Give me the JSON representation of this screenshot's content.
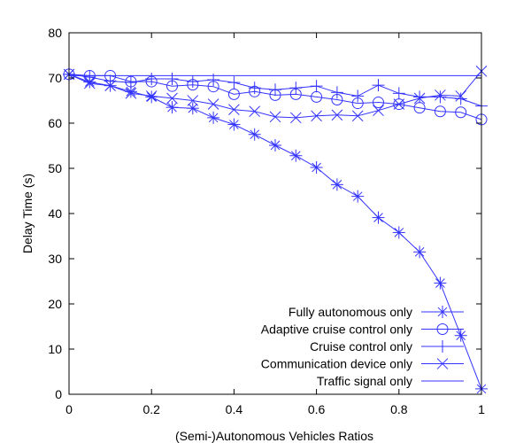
{
  "chart_data": {
    "type": "line",
    "title": "",
    "xlabel": "(Semi-)Autonomous Vehicles Ratios",
    "ylabel": "Delay Time (s)",
    "xlim": [
      0,
      1
    ],
    "ylim": [
      0,
      80
    ],
    "xticks": [
      0,
      0.2,
      0.4,
      0.6,
      0.8,
      1
    ],
    "xtick_labels": [
      "0",
      "0.2",
      "0.4",
      "0.6",
      "0.8",
      "1"
    ],
    "yticks": [
      0,
      10,
      20,
      30,
      40,
      50,
      60,
      70,
      80
    ],
    "ytick_labels": [
      "0",
      "10",
      "20",
      "30",
      "40",
      "50",
      "60",
      "70",
      "80"
    ],
    "grid": false,
    "legend_position": "bottom-right",
    "line_color": "#3333ff",
    "x": [
      0,
      0.05,
      0.1,
      0.15,
      0.2,
      0.25,
      0.3,
      0.35,
      0.4,
      0.45,
      0.5,
      0.55,
      0.6,
      0.65,
      0.7,
      0.75,
      0.8,
      0.85,
      0.9,
      0.95,
      1
    ],
    "series": [
      {
        "name": "Fully autonomous only",
        "marker": "asterisk",
        "values": [
          70.8,
          69.1,
          68.3,
          67.0,
          65.8,
          63.5,
          63.3,
          61.2,
          59.7,
          57.5,
          55.1,
          52.8,
          50.2,
          46.4,
          43.8,
          39.1,
          35.8,
          31.5,
          24.6,
          13.0,
          1.2
        ]
      },
      {
        "name": "Adaptive cruise control only",
        "marker": "circle",
        "values": [
          70.8,
          70.5,
          70.5,
          69.2,
          69.2,
          68.2,
          68.5,
          68.1,
          66.4,
          67.0,
          66.2,
          66.4,
          65.8,
          65.2,
          64.4,
          64.6,
          64.2,
          63.4,
          62.6,
          62.4,
          60.8
        ]
      },
      {
        "name": "Cruise control only",
        "marker": "plus",
        "values": [
          70.8,
          70.2,
          69.3,
          69.0,
          69.8,
          69.8,
          69.2,
          69.6,
          69.0,
          67.8,
          67.4,
          67.8,
          68.2,
          66.8,
          66.0,
          68.4,
          66.6,
          65.8,
          65.8,
          65.4,
          63.8
        ]
      },
      {
        "name": "Communication device only",
        "marker": "cross",
        "values": [
          70.8,
          68.8,
          68.3,
          66.6,
          66.0,
          65.5,
          65.0,
          64.2,
          63.0,
          62.6,
          61.4,
          61.2,
          61.6,
          61.8,
          61.6,
          62.8,
          64.2,
          65.5,
          66.2,
          66.0,
          71.5
        ]
      },
      {
        "name": "Traffic signal only",
        "marker": "none",
        "values": [
          70.5,
          70.5,
          70.5,
          70.5,
          70.5,
          70.5,
          70.5,
          70.5,
          70.5,
          70.5,
          70.5,
          70.5,
          70.5,
          70.5,
          70.5,
          70.5,
          70.5,
          70.5,
          70.5,
          70.5,
          70.5
        ]
      }
    ]
  }
}
